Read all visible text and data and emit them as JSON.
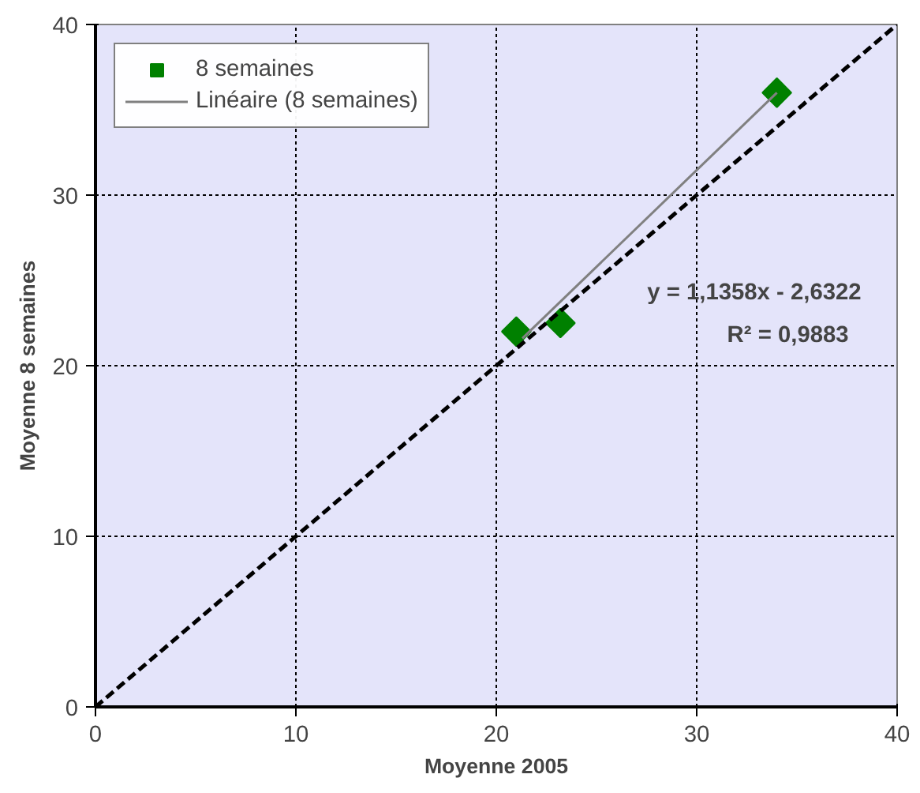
{
  "chart_data": {
    "type": "scatter",
    "xlabel": "Moyenne 2005",
    "ylabel": "Moyenne 8 semaines",
    "xlim": [
      0,
      40
    ],
    "ylim": [
      0,
      40
    ],
    "xticks": [
      0,
      10,
      20,
      30,
      40
    ],
    "yticks": [
      0,
      10,
      20,
      30,
      40
    ],
    "grid": true,
    "legend": "top left",
    "series": [
      {
        "name": "8 semaines",
        "marker": "diamond",
        "color": "#008000",
        "x": [
          21,
          23.2,
          34
        ],
        "values": [
          22,
          22.5,
          36
        ]
      },
      {
        "name": "Linéaire (8 semaines)",
        "type": "line",
        "color": "#808080",
        "x": [
          21.3,
          34
        ],
        "values": [
          21.6,
          36
        ]
      },
      {
        "type": "line",
        "color": "#000000",
        "line_style": "dashed",
        "x": [
          0,
          40
        ],
        "values": [
          0,
          40
        ]
      }
    ],
    "annotations": [
      "y = 1,1358x - 2,6322",
      "R² = 0,9883"
    ]
  }
}
